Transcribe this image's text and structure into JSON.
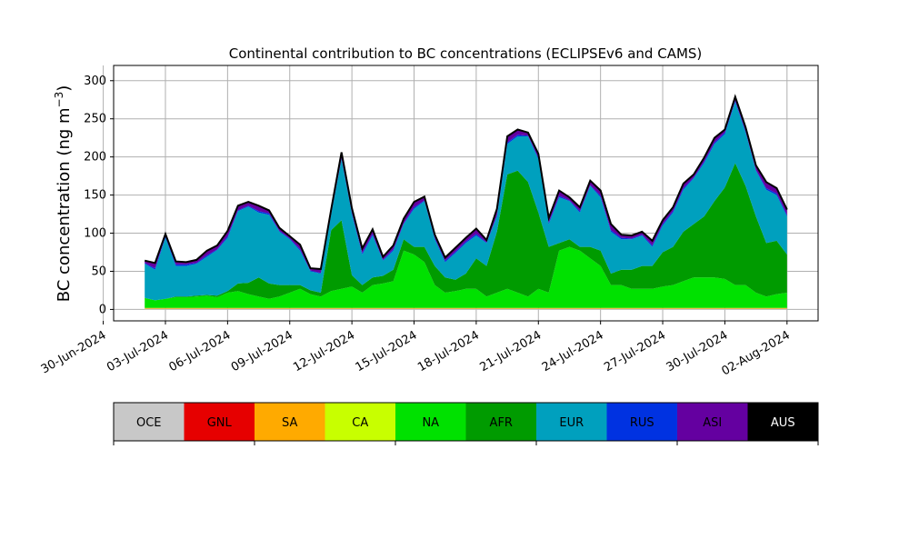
{
  "chart_data": {
    "type": "area",
    "stacked": true,
    "title": "Continental contribution to BC concentrations (ECLIPSEv6 and CAMS)",
    "ylabel": "BC concentration (ng m",
    "ylabel_exponent": "−3",
    "ylabel_close": ")",
    "ylim": [
      -15,
      320
    ],
    "yticks": [
      0,
      50,
      100,
      150,
      200,
      250,
      300
    ],
    "xlim": [
      "2024-06-30T12:00",
      "2024-08-03T12:00"
    ],
    "xticks": [
      "2024-06-30",
      "2024-07-03",
      "2024-07-06",
      "2024-07-09",
      "2024-07-12",
      "2024-07-15",
      "2024-07-18",
      "2024-07-21",
      "2024-07-24",
      "2024-07-27",
      "2024-07-30",
      "2024-08-02"
    ],
    "xtick_labels": [
      "30-Jun-2024",
      "03-Jul-2024",
      "06-Jul-2024",
      "09-Jul-2024",
      "12-Jul-2024",
      "15-Jul-2024",
      "18-Jul-2024",
      "21-Jul-2024",
      "24-Jul-2024",
      "27-Jul-2024",
      "30-Jul-2024",
      "02-Aug-2024"
    ],
    "grid": true,
    "legend_position": "bottom colorbar",
    "x": [
      "2024-07-02T00:00",
      "2024-07-02T12:00",
      "2024-07-03T00:00",
      "2024-07-03T12:00",
      "2024-07-04T00:00",
      "2024-07-04T12:00",
      "2024-07-05T00:00",
      "2024-07-05T12:00",
      "2024-07-06T00:00",
      "2024-07-06T12:00",
      "2024-07-07T00:00",
      "2024-07-07T12:00",
      "2024-07-08T00:00",
      "2024-07-08T12:00",
      "2024-07-09T00:00",
      "2024-07-09T12:00",
      "2024-07-10T00:00",
      "2024-07-10T12:00",
      "2024-07-11T00:00",
      "2024-07-11T12:00",
      "2024-07-12T00:00",
      "2024-07-12T12:00",
      "2024-07-13T00:00",
      "2024-07-13T12:00",
      "2024-07-14T00:00",
      "2024-07-14T12:00",
      "2024-07-15T00:00",
      "2024-07-15T12:00",
      "2024-07-16T00:00",
      "2024-07-16T12:00",
      "2024-07-17T00:00",
      "2024-07-17T12:00",
      "2024-07-18T00:00",
      "2024-07-18T12:00",
      "2024-07-19T00:00",
      "2024-07-19T12:00",
      "2024-07-20T00:00",
      "2024-07-20T12:00",
      "2024-07-21T00:00",
      "2024-07-21T12:00",
      "2024-07-22T00:00",
      "2024-07-22T12:00",
      "2024-07-23T00:00",
      "2024-07-23T12:00",
      "2024-07-24T00:00",
      "2024-07-24T12:00",
      "2024-07-25T00:00",
      "2024-07-25T12:00",
      "2024-07-26T00:00",
      "2024-07-26T12:00",
      "2024-07-27T00:00",
      "2024-07-27T12:00",
      "2024-07-28T00:00",
      "2024-07-28T12:00",
      "2024-07-29T00:00",
      "2024-07-29T12:00",
      "2024-07-30T00:00",
      "2024-07-30T12:00",
      "2024-07-31T00:00",
      "2024-07-31T12:00",
      "2024-08-01T00:00",
      "2024-08-01T12:00",
      "2024-08-02T00:00"
    ],
    "series": [
      {
        "name": "OCE",
        "color": "#c8c8c8",
        "values": [
          1,
          1,
          1,
          1,
          1,
          1,
          1,
          1,
          1,
          1,
          1,
          1,
          1,
          1,
          1,
          1,
          1,
          1,
          1,
          1,
          1,
          1,
          1,
          1,
          1,
          1,
          1,
          1,
          1,
          1,
          1,
          1,
          1,
          1,
          1,
          1,
          1,
          1,
          1,
          1,
          1,
          1,
          1,
          1,
          1,
          1,
          1,
          1,
          1,
          1,
          1,
          1,
          1,
          1,
          1,
          1,
          1,
          1,
          1,
          1,
          1,
          1,
          1
        ]
      },
      {
        "name": "GNL",
        "color": "#e60000",
        "values": [
          0,
          0,
          0,
          0,
          0,
          0,
          0,
          0,
          0,
          0,
          0,
          0,
          0,
          0,
          0,
          0,
          0,
          0,
          0,
          0,
          0,
          0,
          0,
          0,
          0,
          0,
          0,
          0,
          0,
          0,
          0,
          0,
          0,
          0,
          0,
          0,
          0,
          0,
          0,
          0,
          0,
          0,
          0,
          0,
          0,
          0,
          0,
          0,
          0,
          0,
          0,
          0,
          0,
          0,
          0,
          0,
          0,
          0,
          0,
          0,
          0,
          0,
          0
        ]
      },
      {
        "name": "SA",
        "color": "#ffaa00",
        "values": [
          1,
          1,
          1,
          1,
          1,
          1,
          1,
          1,
          1,
          1,
          1,
          1,
          1,
          1,
          1,
          1,
          1,
          1,
          1,
          1,
          1,
          1,
          1,
          1,
          1,
          1,
          1,
          1,
          1,
          1,
          1,
          1,
          1,
          1,
          1,
          1,
          1,
          1,
          1,
          1,
          1,
          1,
          1,
          1,
          1,
          1,
          1,
          1,
          1,
          1,
          1,
          1,
          1,
          1,
          1,
          1,
          1,
          1,
          1,
          1,
          1,
          1,
          1
        ]
      },
      {
        "name": "CA",
        "color": "#c8ff00",
        "values": [
          0,
          0,
          0,
          0,
          0,
          0,
          0,
          0,
          0,
          0,
          0,
          0,
          0,
          0,
          0,
          0,
          0,
          0,
          0,
          0,
          0,
          0,
          0,
          0,
          0,
          0,
          0,
          0,
          0,
          0,
          0,
          0,
          0,
          0,
          0,
          0,
          0,
          0,
          0,
          0,
          0,
          0,
          0,
          0,
          0,
          0,
          0,
          0,
          0,
          0,
          0,
          0,
          0,
          0,
          0,
          0,
          0,
          0,
          0,
          0,
          0,
          0,
          0
        ]
      },
      {
        "name": "NA",
        "color": "#00e100",
        "values": [
          13,
          10,
          12,
          14,
          14,
          15,
          16,
          14,
          20,
          22,
          18,
          15,
          12,
          15,
          20,
          25,
          18,
          15,
          22,
          25,
          28,
          20,
          30,
          32,
          35,
          75,
          70,
          60,
          30,
          20,
          22,
          25,
          25,
          15,
          20,
          25,
          20,
          15,
          25,
          20,
          75,
          80,
          75,
          65,
          55,
          30,
          30,
          25,
          25,
          25,
          28,
          30,
          35,
          40,
          40,
          40,
          38,
          30,
          30,
          20,
          15,
          18,
          20
        ]
      },
      {
        "name": "AFR",
        "color": "#009b00",
        "values": [
          0,
          0,
          0,
          1,
          1,
          1,
          1,
          2,
          2,
          10,
          15,
          25,
          20,
          15,
          10,
          5,
          5,
          5,
          80,
          90,
          15,
          10,
          10,
          10,
          15,
          15,
          10,
          20,
          25,
          20,
          15,
          20,
          40,
          40,
          80,
          150,
          160,
          150,
          100,
          60,
          10,
          10,
          5,
          15,
          20,
          15,
          20,
          25,
          30,
          30,
          45,
          50,
          65,
          70,
          80,
          100,
          120,
          160,
          130,
          100,
          70,
          70,
          50
        ]
      },
      {
        "name": "EUR",
        "color": "#00a0be",
        "values": [
          45,
          40,
          80,
          40,
          40,
          42,
          50,
          60,
          70,
          95,
          100,
          85,
          90,
          70,
          60,
          45,
          25,
          25,
          20,
          80,
          80,
          40,
          55,
          20,
          25,
          20,
          50,
          60,
          35,
          20,
          35,
          40,
          30,
          30,
          20,
          40,
          45,
          60,
          70,
          30,
          60,
          50,
          45,
          80,
          70,
          55,
          40,
          40,
          40,
          25,
          35,
          45,
          55,
          60,
          70,
          75,
          70,
          80,
          70,
          60,
          70,
          60,
          50
        ]
      },
      {
        "name": "RUS",
        "color": "#0032e1",
        "values": [
          1,
          2,
          2,
          2,
          2,
          1,
          2,
          1,
          2,
          1,
          1,
          2,
          2,
          1,
          1,
          2,
          1,
          1,
          1,
          1,
          2,
          2,
          2,
          1,
          2,
          1,
          2,
          1,
          2,
          2,
          2,
          2,
          2,
          1,
          2,
          2,
          2,
          1,
          2,
          2,
          2,
          1,
          2,
          1,
          2,
          2,
          2,
          1,
          1,
          2,
          2,
          2,
          2,
          1,
          2,
          2,
          2,
          2,
          2,
          1,
          2,
          2,
          2
        ]
      },
      {
        "name": "ASI",
        "color": "#6400a0",
        "values": [
          2,
          6,
          2,
          3,
          2,
          3,
          5,
          4,
          6,
          5,
          4,
          6,
          3,
          3,
          2,
          5,
          2,
          4,
          5,
          7,
          5,
          5,
          5,
          3,
          4,
          5,
          6,
          4,
          3,
          3,
          4,
          4,
          6,
          2,
          7,
          7,
          6,
          3,
          4,
          5,
          6,
          3,
          4,
          5,
          6,
          7,
          3,
          3,
          3,
          5,
          4,
          4,
          5,
          3,
          4,
          5,
          3,
          4,
          4,
          5,
          7,
          6,
          6
        ]
      },
      {
        "name": "AUS",
        "color": "#000000",
        "values": [
          1,
          1,
          1,
          1,
          1,
          1,
          1,
          1,
          1,
          1,
          1,
          1,
          1,
          1,
          1,
          1,
          1,
          1,
          1,
          1,
          1,
          1,
          1,
          1,
          1,
          1,
          1,
          1,
          1,
          1,
          1,
          1,
          1,
          1,
          1,
          1,
          1,
          1,
          1,
          1,
          1,
          1,
          1,
          1,
          1,
          1,
          1,
          1,
          1,
          1,
          1,
          1,
          1,
          1,
          1,
          1,
          1,
          1,
          1,
          1,
          1,
          1,
          1
        ]
      }
    ]
  },
  "legend": {
    "items": [
      {
        "label": "OCE",
        "color": "#c8c8c8"
      },
      {
        "label": "GNL",
        "color": "#e60000"
      },
      {
        "label": "SA",
        "color": "#ffaa00"
      },
      {
        "label": "CA",
        "color": "#c8ff00"
      },
      {
        "label": "NA",
        "color": "#00e100"
      },
      {
        "label": "AFR",
        "color": "#009b00"
      },
      {
        "label": "EUR",
        "color": "#00a0be"
      },
      {
        "label": "RUS",
        "color": "#0032e1"
      },
      {
        "label": "ASI",
        "color": "#6400a0"
      },
      {
        "label": "AUS",
        "color": "#000000"
      }
    ]
  }
}
